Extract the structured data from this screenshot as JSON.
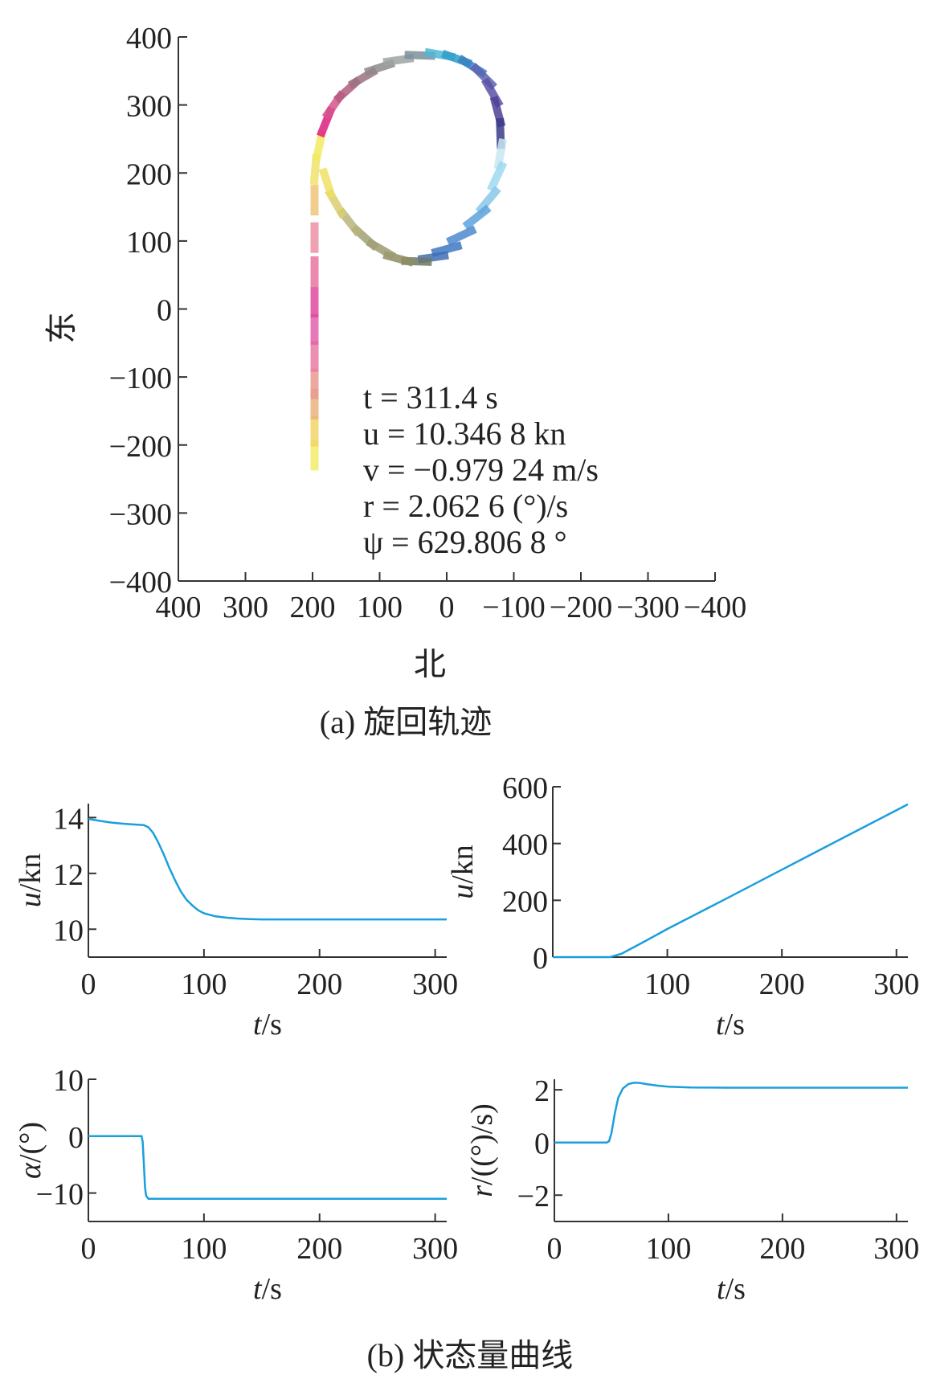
{
  "figure": {
    "caption_a": "(a) 旋回轨迹",
    "caption_b": "(b) 状态量曲线"
  },
  "colors": {
    "line": "#1a9fdc",
    "axis": "#333333",
    "text": "#222222"
  },
  "chart_data": [
    {
      "id": "trajectory",
      "type": "scatter",
      "title": "",
      "xlabel": "北",
      "ylabel": "东",
      "xlim": [
        400,
        -400
      ],
      "ylim": [
        -400,
        400
      ],
      "x_reversed": true,
      "xticks": [
        400,
        300,
        200,
        100,
        0,
        -100,
        -200,
        -300,
        -400
      ],
      "xtick_labels": [
        "400",
        "300",
        "200",
        "100",
        "0",
        "−100",
        "−200",
        "−300",
        "−400"
      ],
      "yticks": [
        400,
        300,
        200,
        100,
        0,
        -100,
        -200,
        -300,
        -400
      ],
      "ytick_labels": [
        "400",
        "300",
        "200",
        "100",
        "0",
        "−100",
        "−200",
        "−300",
        "−400"
      ],
      "annotations": [
        "t = 311.4 s",
        "u = 10.346 8 kn",
        "v = −0.979 24 m/s",
        "r = 2.062 6 (°)/s",
        "ψ = 629.806 8 °"
      ],
      "path": [
        {
          "x": 197,
          "y": -230
        },
        {
          "x": 197,
          "y": -150
        },
        {
          "x": 197,
          "y": -60
        },
        {
          "x": 197,
          "y": 40
        },
        {
          "x": 197,
          "y": 130
        },
        {
          "x": 197,
          "y": 200
        },
        {
          "x": 188,
          "y": 255
        },
        {
          "x": 165,
          "y": 300
        },
        {
          "x": 128,
          "y": 340
        },
        {
          "x": 85,
          "y": 365
        },
        {
          "x": 35,
          "y": 375
        },
        {
          "x": -20,
          "y": 368
        },
        {
          "x": -55,
          "y": 340
        },
        {
          "x": -75,
          "y": 295
        },
        {
          "x": -80,
          "y": 240
        },
        {
          "x": -75,
          "y": 190
        },
        {
          "x": -55,
          "y": 140
        },
        {
          "x": -20,
          "y": 100
        },
        {
          "x": 15,
          "y": 75
        },
        {
          "x": 50,
          "y": 68
        },
        {
          "x": 80,
          "y": 80
        },
        {
          "x": 110,
          "y": 100
        },
        {
          "x": 140,
          "y": 125
        },
        {
          "x": 165,
          "y": 160
        },
        {
          "x": 180,
          "y": 205
        },
        {
          "x": 188,
          "y": 255
        }
      ],
      "heading_segments": [
        {
          "x": 197,
          "y": -215,
          "heading": 0,
          "color": "#f3ec6c"
        },
        {
          "x": 197,
          "y": -180,
          "heading": 0,
          "color": "#f2d56a"
        },
        {
          "x": 197,
          "y": -140,
          "heading": 0,
          "color": "#eab37c"
        },
        {
          "x": 197,
          "y": -110,
          "heading": 0,
          "color": "#e89a8e"
        },
        {
          "x": 197,
          "y": -70,
          "heading": 0,
          "color": "#e77da2"
        },
        {
          "x": 197,
          "y": -30,
          "heading": 0,
          "color": "#e462ac"
        },
        {
          "x": 197,
          "y": 10,
          "heading": 0,
          "color": "#df4a9f"
        },
        {
          "x": 197,
          "y": 55,
          "heading": 0,
          "color": "#e7769e"
        },
        {
          "x": 197,
          "y": 105,
          "heading": 0,
          "color": "#ec91a5"
        },
        {
          "x": 197,
          "y": 160,
          "heading": 0,
          "color": "#efc67d"
        },
        {
          "x": 196,
          "y": 205,
          "heading": 5,
          "color": "#f0e36a"
        },
        {
          "x": 190,
          "y": 240,
          "heading": 12,
          "color": "#f2ea5f"
        },
        {
          "x": 180,
          "y": 275,
          "heading": 22,
          "color": "#dd1f82"
        },
        {
          "x": 168,
          "y": 300,
          "heading": 35,
          "color": "#d6558e"
        },
        {
          "x": 148,
          "y": 322,
          "heading": 48,
          "color": "#b25d7e"
        },
        {
          "x": 125,
          "y": 340,
          "heading": 60,
          "color": "#9a7283"
        },
        {
          "x": 100,
          "y": 355,
          "heading": 72,
          "color": "#8f8a8c"
        },
        {
          "x": 72,
          "y": 366,
          "heading": 82,
          "color": "#9ea3a5"
        },
        {
          "x": 40,
          "y": 373,
          "heading": 92,
          "color": "#7b8f9c"
        },
        {
          "x": 10,
          "y": 374,
          "heading": 100,
          "color": "#4fb6d6"
        },
        {
          "x": -15,
          "y": 368,
          "heading": 110,
          "color": "#2f9cc9"
        },
        {
          "x": -38,
          "y": 357,
          "heading": 122,
          "color": "#3b7fc2"
        },
        {
          "x": -55,
          "y": 342,
          "heading": 135,
          "color": "#5d63b2"
        },
        {
          "x": -68,
          "y": 318,
          "heading": 150,
          "color": "#5a51a6"
        },
        {
          "x": -76,
          "y": 290,
          "heading": 165,
          "color": "#4f3f96"
        },
        {
          "x": -80,
          "y": 258,
          "heading": 178,
          "color": "#3a3b86"
        },
        {
          "x": -80,
          "y": 228,
          "heading": 190,
          "color": "#c9e6f2"
        },
        {
          "x": -75,
          "y": 195,
          "heading": 205,
          "color": "#9dd8f2"
        },
        {
          "x": -62,
          "y": 160,
          "heading": 220,
          "color": "#8ac8ea"
        },
        {
          "x": -45,
          "y": 135,
          "heading": 232,
          "color": "#5ba3dd"
        },
        {
          "x": -22,
          "y": 108,
          "heading": 245,
          "color": "#4b89cf"
        },
        {
          "x": 0,
          "y": 88,
          "heading": 255,
          "color": "#3e78c3"
        },
        {
          "x": 20,
          "y": 76,
          "heading": 262,
          "color": "#3f6fb3"
        },
        {
          "x": 45,
          "y": 70,
          "heading": 272,
          "color": "#6c7766"
        },
        {
          "x": 72,
          "y": 74,
          "heading": 285,
          "color": "#8f8d62"
        },
        {
          "x": 98,
          "y": 88,
          "heading": 300,
          "color": "#9d9a72"
        },
        {
          "x": 122,
          "y": 105,
          "heading": 312,
          "color": "#a0a075"
        },
        {
          "x": 145,
          "y": 128,
          "heading": 322,
          "color": "#b8b47a"
        },
        {
          "x": 165,
          "y": 155,
          "heading": 330,
          "color": "#d9ce6e"
        },
        {
          "x": 178,
          "y": 185,
          "heading": 342,
          "color": "#eee064"
        }
      ]
    },
    {
      "id": "u-plot",
      "type": "line",
      "title": "",
      "xlabel": "t/s",
      "ylabel": "u/kn",
      "xlim": [
        0,
        310
      ],
      "ylim": [
        9,
        14.5
      ],
      "xticks": [
        0,
        100,
        200,
        300
      ],
      "yticks": [
        10,
        12,
        14
      ],
      "series": [
        {
          "x": [
            0,
            10,
            20,
            30,
            40,
            48,
            52,
            56,
            60,
            65,
            70,
            75,
            80,
            85,
            90,
            95,
            100,
            110,
            120,
            130,
            140,
            150,
            175,
            200,
            250,
            310
          ],
          "y": [
            13.95,
            13.88,
            13.82,
            13.78,
            13.75,
            13.73,
            13.65,
            13.45,
            13.15,
            12.7,
            12.2,
            11.75,
            11.35,
            11.05,
            10.85,
            10.68,
            10.57,
            10.46,
            10.41,
            10.38,
            10.36,
            10.35,
            10.35,
            10.35,
            10.35,
            10.35
          ]
        }
      ]
    },
    {
      "id": "psi-plot",
      "type": "line",
      "title": "",
      "xlabel": "t/s",
      "ylabel": "u/kn",
      "xlim": [
        0,
        310
      ],
      "ylim": [
        0,
        600
      ],
      "xticks": [
        100,
        200,
        300
      ],
      "yticks": [
        0,
        200,
        400,
        600
      ],
      "series": [
        {
          "x": [
            0,
            10,
            20,
            30,
            40,
            50,
            60,
            80,
            100,
            150,
            200,
            250,
            310
          ],
          "y": [
            0,
            0,
            0,
            0,
            0,
            0,
            12,
            55,
            99,
            203,
            308,
            413,
            538
          ]
        }
      ]
    },
    {
      "id": "alpha-plot",
      "type": "line",
      "title": "",
      "xlabel": "t/s",
      "ylabel": "α/(°)",
      "xlim": [
        0,
        310
      ],
      "ylim": [
        -15,
        10
      ],
      "xticks": [
        0,
        100,
        200,
        300
      ],
      "yticks": [
        10,
        0,
        -10
      ],
      "ytick_labels": [
        "10",
        "0",
        "−10"
      ],
      "series": [
        {
          "x": [
            0,
            10,
            20,
            30,
            40,
            46,
            47,
            48,
            49,
            50,
            52,
            55,
            60,
            100,
            200,
            310
          ],
          "y": [
            0,
            0,
            0,
            0,
            0,
            0,
            -1,
            -5,
            -9,
            -10.5,
            -11,
            -11,
            -11,
            -11,
            -11,
            -11
          ]
        }
      ]
    },
    {
      "id": "r-plot",
      "type": "line",
      "title": "",
      "xlabel": "t/s",
      "ylabel": "r/((°)/s)",
      "xlim": [
        0,
        310
      ],
      "ylim": [
        -3,
        2.4
      ],
      "xticks": [
        0,
        100,
        200,
        300
      ],
      "yticks": [
        2,
        0,
        -2
      ],
      "ytick_labels": [
        "2",
        "0",
        "−2"
      ],
      "series": [
        {
          "x": [
            0,
            10,
            20,
            30,
            40,
            46,
            48,
            50,
            53,
            56,
            60,
            65,
            70,
            75,
            80,
            90,
            100,
            120,
            150,
            200,
            250,
            310
          ],
          "y": [
            0,
            0,
            0,
            0,
            0,
            0,
            0.05,
            0.35,
            1.1,
            1.7,
            2.05,
            2.22,
            2.27,
            2.26,
            2.22,
            2.16,
            2.12,
            2.09,
            2.08,
            2.08,
            2.08,
            2.08
          ]
        }
      ]
    }
  ]
}
